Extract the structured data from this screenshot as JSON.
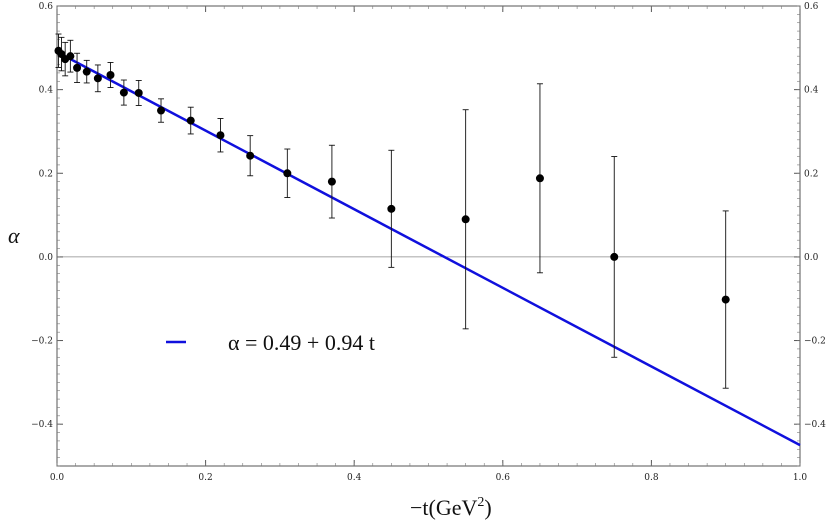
{
  "chart_data": {
    "type": "scatter",
    "xlabel": "−t(GeV",
    "xlabel_sup": "2",
    "xlabel_close": ")",
    "ylabel": "α",
    "xlim": [
      0,
      1.0
    ],
    "ylim": [
      -0.5,
      0.6
    ],
    "x_ticks": [
      0.0,
      0.2,
      0.4,
      0.6,
      0.8,
      1.0
    ],
    "x_tick_labels": [
      "0.0",
      "0.2",
      "0.4",
      "0.6",
      "0.8",
      "1.0"
    ],
    "y_ticks": [
      -0.4,
      -0.2,
      0.0,
      0.2,
      0.4,
      0.6
    ],
    "y_tick_labels": [
      "−0.4",
      "−0.2",
      "0.0",
      "0.2",
      "0.4",
      "0.6"
    ],
    "grid": false,
    "zero_line": true,
    "points": [
      {
        "x": 0.002,
        "y": 0.493,
        "err": 0.04
      },
      {
        "x": 0.006,
        "y": 0.485,
        "err": 0.04
      },
      {
        "x": 0.011,
        "y": 0.473,
        "err": 0.04
      },
      {
        "x": 0.018,
        "y": 0.48,
        "err": 0.038
      },
      {
        "x": 0.027,
        "y": 0.452,
        "err": 0.035
      },
      {
        "x": 0.04,
        "y": 0.443,
        "err": 0.027
      },
      {
        "x": 0.055,
        "y": 0.427,
        "err": 0.032
      },
      {
        "x": 0.072,
        "y": 0.435,
        "err": 0.03
      },
      {
        "x": 0.09,
        "y": 0.393,
        "err": 0.03
      },
      {
        "x": 0.11,
        "y": 0.392,
        "err": 0.03
      },
      {
        "x": 0.14,
        "y": 0.35,
        "err": 0.028
      },
      {
        "x": 0.18,
        "y": 0.326,
        "err": 0.032
      },
      {
        "x": 0.22,
        "y": 0.291,
        "err": 0.04
      },
      {
        "x": 0.26,
        "y": 0.242,
        "err": 0.048
      },
      {
        "x": 0.31,
        "y": 0.2,
        "err": 0.058
      },
      {
        "x": 0.37,
        "y": 0.18,
        "err": 0.087
      },
      {
        "x": 0.45,
        "y": 0.115,
        "err": 0.14
      },
      {
        "x": 0.55,
        "y": 0.09,
        "err": 0.262
      },
      {
        "x": 0.65,
        "y": 0.188,
        "err": 0.226
      },
      {
        "x": 0.75,
        "y": 0.0,
        "err": 0.24
      },
      {
        "x": 0.9,
        "y": -0.102,
        "err": 0.212
      }
    ],
    "fit_line": {
      "intercept": 0.49,
      "slope": -0.94,
      "color": "#1010dd",
      "legend_label": "α = 0.49 + 0.94 t"
    },
    "legend_position": "lower-left"
  }
}
